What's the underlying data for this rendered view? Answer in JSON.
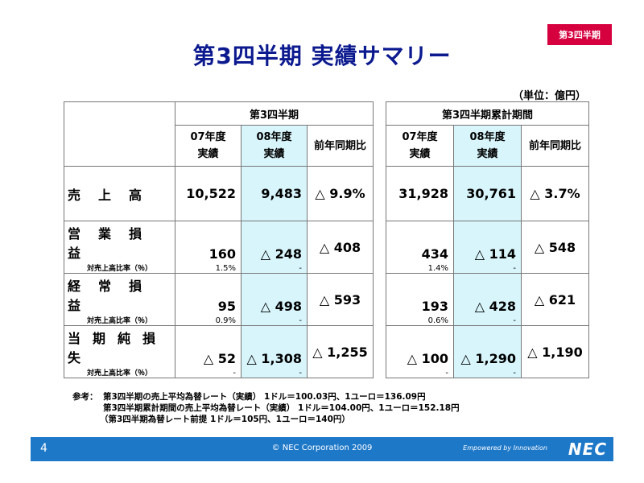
{
  "badge": "第3四半期",
  "title": "第3四半期 実績サマリー",
  "unit": "（単位：億円）",
  "groups": {
    "q3": "第3四半期",
    "cum": "第3四半期累計期間"
  },
  "cols": {
    "fy07": [
      "07年度",
      "実績"
    ],
    "fy08": [
      "08年度",
      "実績"
    ],
    "yoy": "前年同期比"
  },
  "rows": [
    {
      "label": "売上高",
      "q3": [
        "10,522",
        "9,483",
        "△ 9.9%"
      ],
      "cum": [
        "31,928",
        "30,761",
        "△ 3.7%"
      ]
    },
    {
      "label": "営業損益",
      "q3": [
        "160",
        "△ 248",
        "△ 408"
      ],
      "cum": [
        "434",
        "△ 114",
        "△ 548"
      ],
      "sub_label": "対売上高比率（％）",
      "q3_sub": [
        "1.5%",
        "-"
      ],
      "cum_sub": [
        "1.4%",
        "-"
      ]
    },
    {
      "label": "経常損益",
      "q3": [
        "95",
        "△ 498",
        "△ 593"
      ],
      "cum": [
        "193",
        "△ 428",
        "△ 621"
      ],
      "sub_label": "対売上高比率（％）",
      "q3_sub": [
        "0.9%",
        "-"
      ],
      "cum_sub": [
        "0.6%",
        "-"
      ]
    },
    {
      "label": "当期純損失",
      "q3": [
        "△ 52",
        "△ 1,308",
        "△ 1,255"
      ],
      "cum": [
        "△ 100",
        "△ 1,290",
        "△ 1,190"
      ],
      "sub_label": "対売上高比率（％）",
      "q3_sub": [
        "-",
        "-"
      ],
      "cum_sub": [
        "-",
        "-"
      ]
    }
  ],
  "notes": {
    "lead": "参考：",
    "line1": "第3四半期の売上平均為替レート（実績） 1ドル＝100.03円、1ユーロ＝136.09円",
    "line2": "第3四半期累計期間の売上平均為替レート（実績） 1ドル＝104.00円、1ユーロ＝152.18円",
    "line3": "（第3四半期為替レート前提 1ドル＝105円、1ユーロ＝140円）"
  },
  "footer": {
    "page": "4",
    "copyright": "© NEC Corporation 2009",
    "tagline": "Empowered by Innovation",
    "logo": "NEC",
    "bar_color": "#1e78c8"
  },
  "colors": {
    "title": "#0c1a8f",
    "badge": "#d6003f",
    "highlight": "#d7f5fb"
  }
}
